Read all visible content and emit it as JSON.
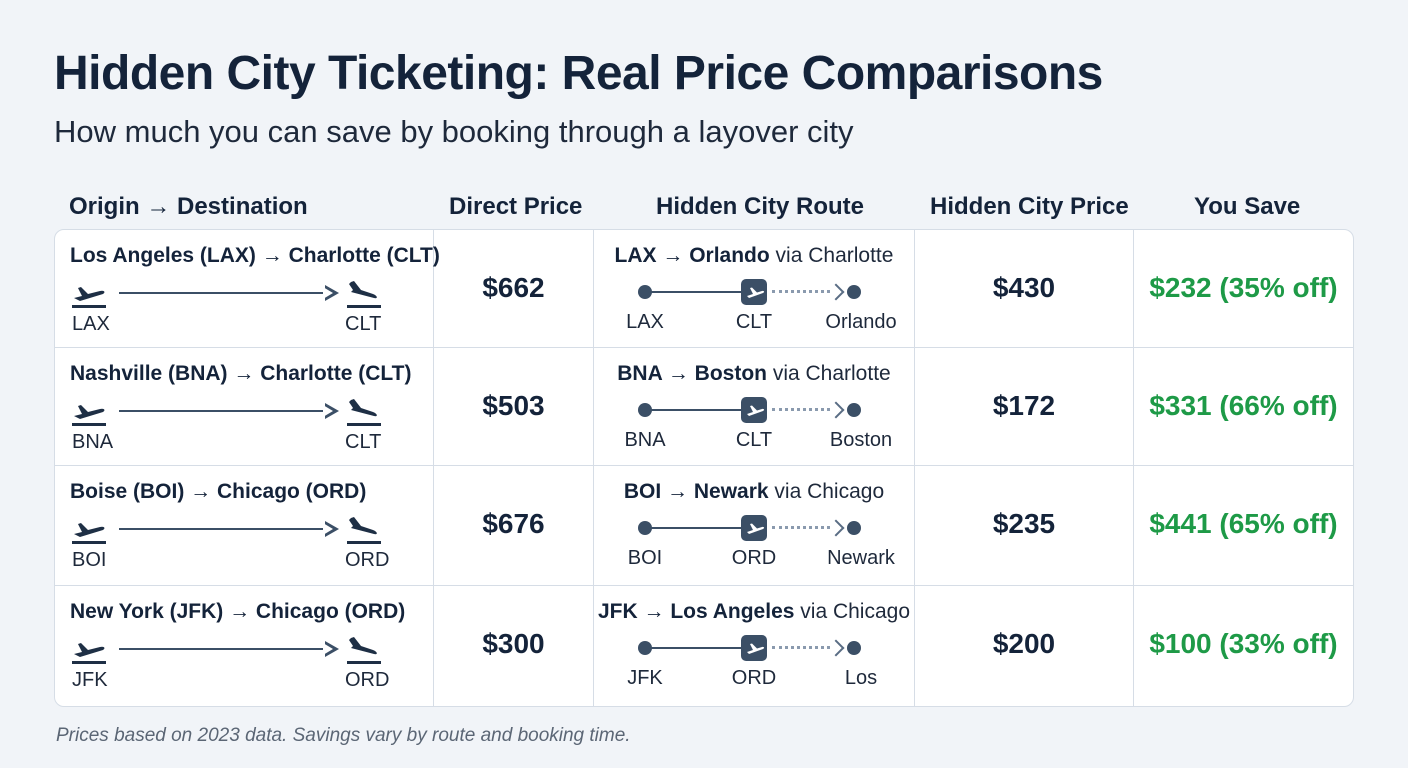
{
  "title": "Hidden City Ticketing: Real Price Comparisons",
  "subtitle": "How much you can save by booking through a layover city",
  "columns": {
    "route": "Origin → Destination",
    "direct": "Direct Price",
    "hidden_route": "Hidden City Route",
    "hidden_price": "Hidden City Price",
    "save": "You Save"
  },
  "rows": [
    {
      "route_label": "Los Angeles (LAX) → Charlotte (CLT)",
      "origin_code": "LAX",
      "dest_code": "CLT",
      "direct_price": "$662",
      "hc_prefix": "LAX → Orlando",
      "hc_suffix": " via Charlotte",
      "hc_from": "LAX",
      "hc_via": "CLT",
      "hc_to": "Orlando",
      "hidden_price": "$430",
      "save": "$232 (35% off)"
    },
    {
      "route_label": "Nashville (BNA) → Charlotte (CLT)",
      "origin_code": "BNA",
      "dest_code": "CLT",
      "direct_price": "$503",
      "hc_prefix": "BNA → Boston",
      "hc_suffix": " via Charlotte",
      "hc_from": "BNA",
      "hc_via": "CLT",
      "hc_to": "Boston",
      "hidden_price": "$172",
      "save": "$331 (66% off)"
    },
    {
      "route_label": "Boise (BOI) → Chicago (ORD)",
      "origin_code": "BOI",
      "dest_code": "ORD",
      "direct_price": "$676",
      "hc_prefix": "BOI → Newark",
      "hc_suffix": " via Chicago",
      "hc_from": "BOI",
      "hc_via": "ORD",
      "hc_to": "Newark",
      "hidden_price": "$235",
      "save": "$441 (65% off)"
    },
    {
      "route_label": "New York (JFK) → Chicago (ORD)",
      "origin_code": "JFK",
      "dest_code": "ORD",
      "direct_price": "$300",
      "hc_prefix": "JFK → Los Angeles",
      "hc_suffix": " via Chicago",
      "hc_from": "JFK",
      "hc_via": "ORD",
      "hc_to": "Los",
      "hidden_price": "$200",
      "save": "$100 (33% off)"
    }
  ],
  "footnote": "Prices based on 2023 data. Savings vary by route and booking time.",
  "colors": {
    "heading": "#14233a",
    "savings_green": "#1e9a47",
    "route_line": "#3b4f66"
  },
  "icons": [
    "plane-departure-icon",
    "plane-arrival-icon",
    "plane-icon"
  ]
}
